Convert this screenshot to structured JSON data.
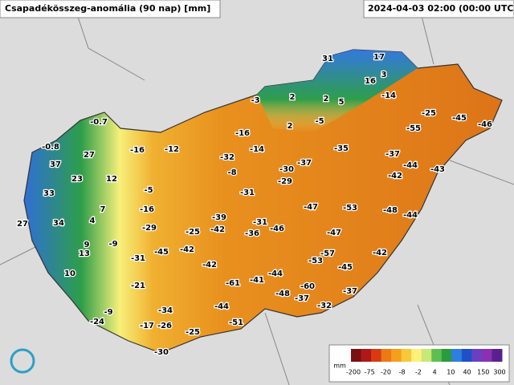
{
  "header": {
    "title": "Csapadékösszeg-anomália (90 nap) [mm]",
    "timestamp": "2024-04-03 02:00 (00:00 UTC)"
  },
  "stations": [
    31,
    17,
    3,
    16,
    -14,
    -3,
    2,
    2,
    5,
    -25,
    -45,
    -46,
    -0.7,
    2,
    -5,
    -55,
    -16,
    -0.8,
    -16,
    -12,
    -14,
    -35,
    -37,
    27,
    -32,
    -43,
    37,
    -44,
    -30,
    -37,
    -42,
    -8,
    23,
    12,
    -29,
    -5,
    -31,
    33,
    7,
    -16,
    -47,
    -53,
    -48,
    -44,
    -39,
    27,
    34,
    4,
    -29,
    -31,
    -25,
    -42,
    -46,
    -36,
    -47,
    9,
    -9,
    -45,
    -42,
    -57,
    -42,
    13,
    -31,
    -53,
    -45,
    -42,
    -44,
    10,
    -61,
    -41,
    -60,
    -37,
    -21,
    -48,
    -37,
    -32,
    -9,
    -34,
    -44,
    -24,
    -17,
    -26,
    -51,
    -25,
    -30
  ],
  "legend": {
    "unit": "mm",
    "labels": [
      "-200",
      "-75",
      "-20",
      "-8",
      "-2",
      "4",
      "10",
      "40",
      "150",
      "300"
    ]
  }
}
